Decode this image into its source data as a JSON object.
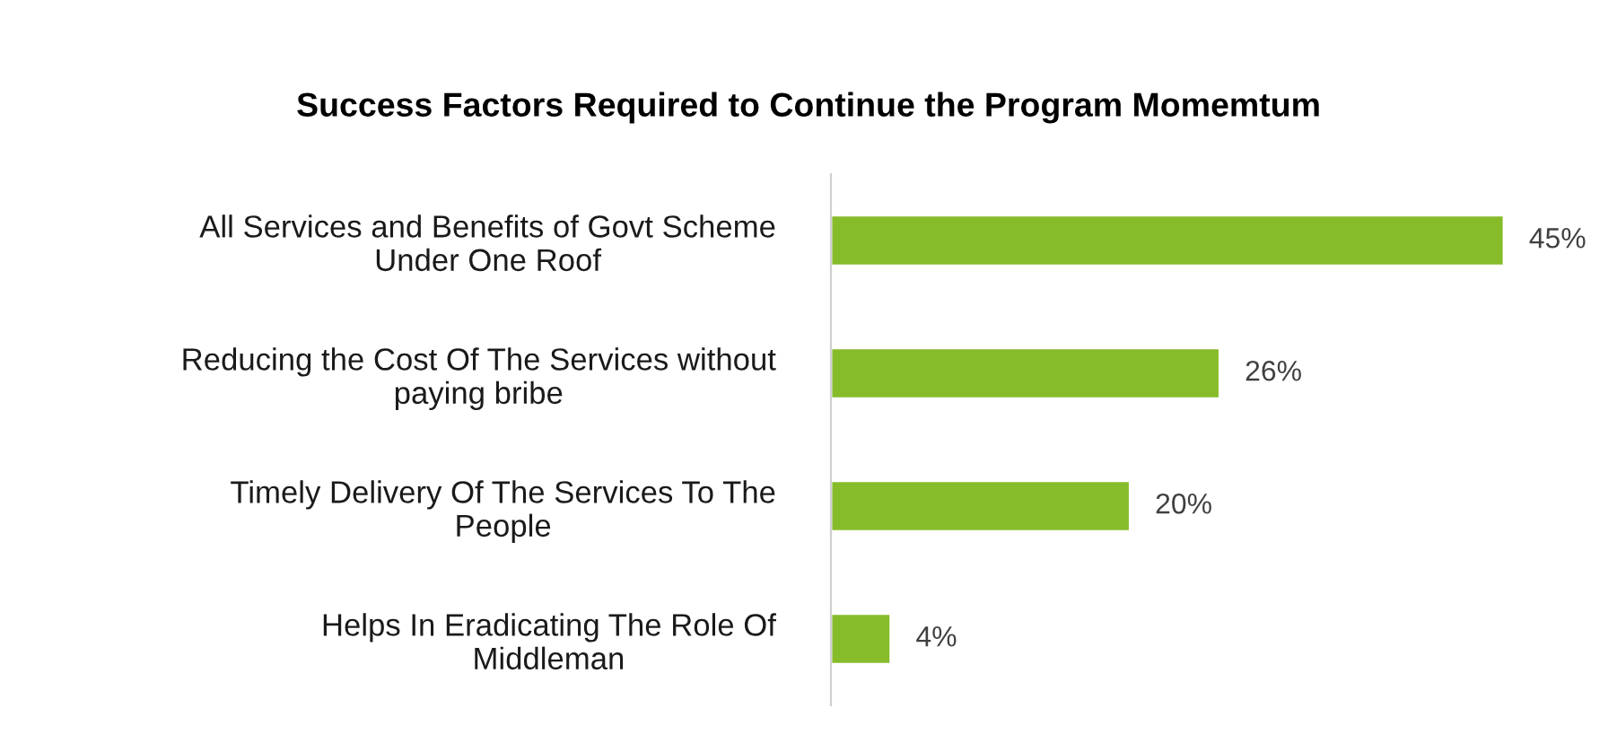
{
  "chart_data": {
    "type": "bar",
    "orientation": "horizontal",
    "title": "Success Factors Required to Continue the Program Momemtum",
    "categories": [
      "All Services and Benefits of Govt Scheme\nUnder One Roof",
      "Reducing the Cost Of The Services without\npaying bribe",
      "Timely Delivery Of The Services To The\nPeople",
      "Helps In Eradicating The Role Of\nMiddleman"
    ],
    "values": [
      45,
      26,
      20,
      4
    ],
    "value_labels": [
      "45%",
      "26%",
      "20%",
      "4%"
    ],
    "color": "#86bc2a",
    "grid": false,
    "legend": false
  }
}
